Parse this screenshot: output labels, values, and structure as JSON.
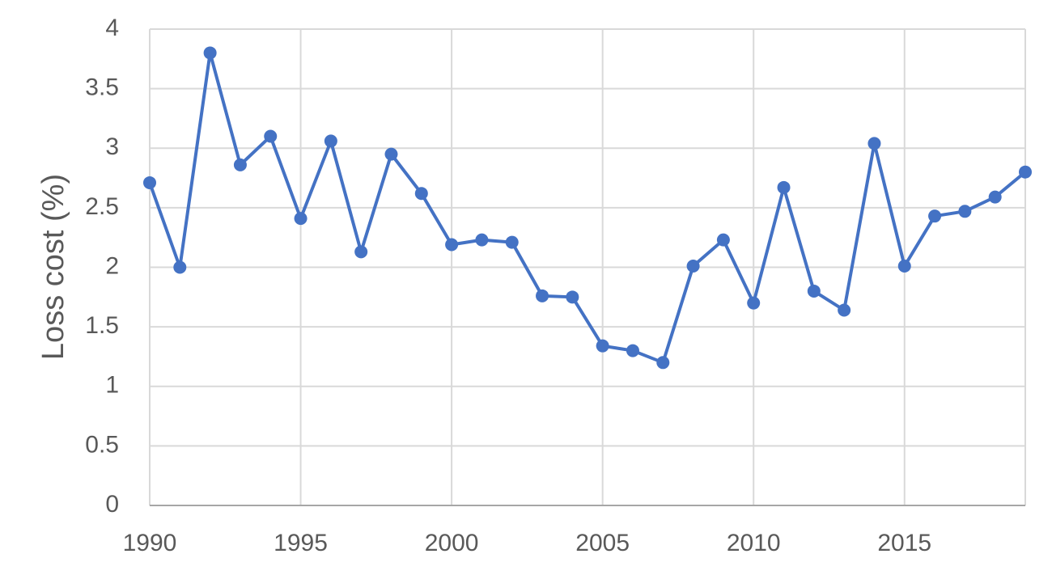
{
  "chart_data": {
    "type": "line",
    "y_label": "Loss cost (%)",
    "x": [
      1990,
      1991,
      1992,
      1993,
      1994,
      1995,
      1996,
      1997,
      1998,
      1999,
      2000,
      2001,
      2002,
      2003,
      2004,
      2005,
      2006,
      2007,
      2008,
      2009,
      2010,
      2011,
      2012,
      2013,
      2014,
      2015,
      2016,
      2017,
      2018,
      2019
    ],
    "values": [
      2.71,
      2.0,
      3.8,
      2.86,
      3.1,
      2.41,
      3.06,
      2.13,
      2.95,
      2.62,
      2.19,
      2.23,
      2.21,
      1.76,
      1.75,
      1.34,
      1.3,
      1.2,
      2.01,
      2.23,
      1.7,
      2.67,
      1.8,
      1.64,
      3.04,
      2.01,
      2.43,
      2.47,
      2.59,
      2.8
    ],
    "color": "#4472c4",
    "xlim": [
      1990,
      2019
    ],
    "xticks": [
      1990,
      1995,
      2000,
      2005,
      2010,
      2015
    ],
    "ylim": [
      0,
      4
    ],
    "yticks": [
      0,
      0.5,
      1,
      1.5,
      2,
      2.5,
      3,
      3.5,
      4
    ],
    "grid": true
  }
}
